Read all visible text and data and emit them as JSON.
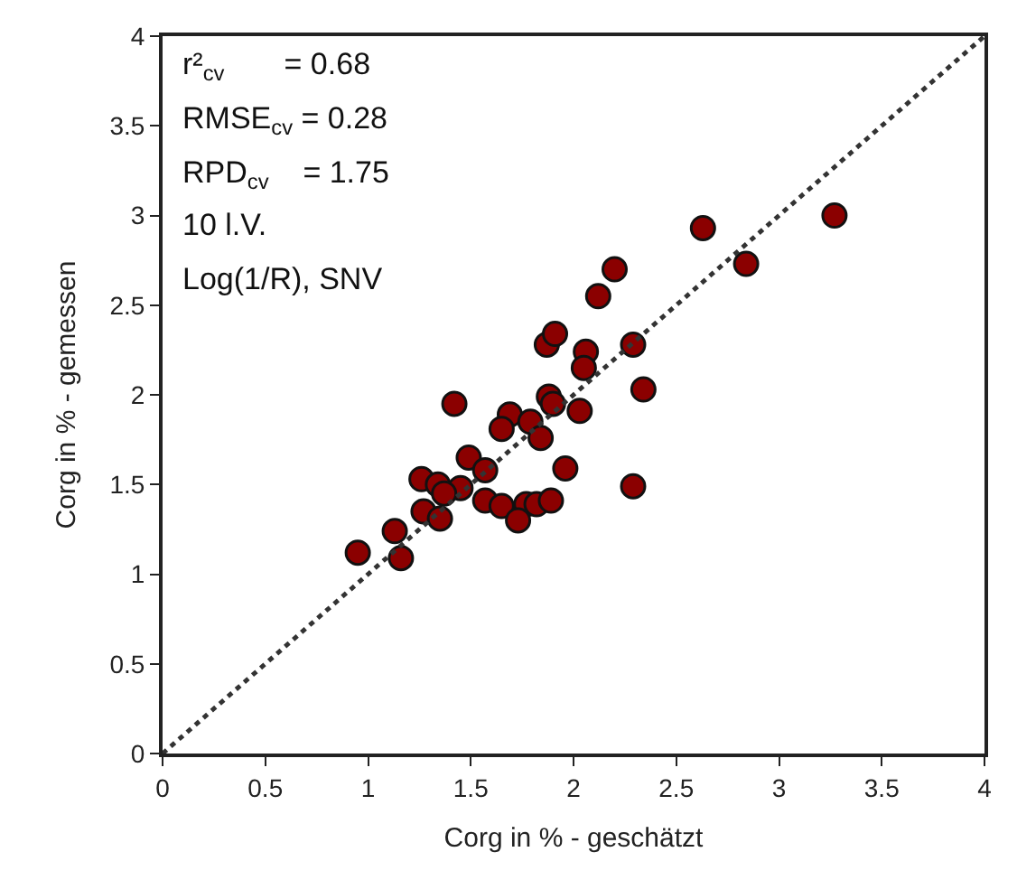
{
  "chart_data": {
    "type": "scatter",
    "xlabel": "Corg in % - geschätzt",
    "ylabel": "Corg in % - gemessen",
    "xlim": [
      0,
      4
    ],
    "ylim": [
      0,
      4
    ],
    "xticks": [
      0,
      0.5,
      1,
      1.5,
      2,
      2.5,
      3,
      3.5,
      4
    ],
    "yticks": [
      0,
      0.5,
      1,
      1.5,
      2,
      2.5,
      3,
      3.5,
      4
    ],
    "legend": false,
    "marker": "circle",
    "annotations": [
      "r²$_{cv}$       = 0.68",
      "RMSE$_{cv}$ = 0.28",
      "RPD$_{cv}$    = 1.75",
      "10 l.V.",
      "Log(1/R), SNV"
    ],
    "series": [
      {
        "color": "#8b0000",
        "x": [
          2.2,
          2.12,
          1.87,
          1.91,
          2.06,
          2.05,
          2.29,
          2.34,
          1.42,
          1.88,
          1.9,
          2.03,
          1.69,
          1.79,
          1.65,
          1.84,
          1.49,
          1.57,
          1.96,
          2.29,
          1.26,
          1.34,
          1.45,
          1.37,
          1.57,
          1.65,
          1.77,
          1.82,
          1.89,
          1.73,
          1.27,
          1.35,
          1.13,
          1.16,
          0.95,
          2.63,
          3.27,
          2.84
        ],
        "values": [
          2.7,
          2.55,
          2.28,
          2.34,
          2.24,
          2.15,
          2.28,
          2.03,
          1.95,
          1.99,
          1.95,
          1.91,
          1.89,
          1.85,
          1.81,
          1.76,
          1.65,
          1.58,
          1.59,
          1.49,
          1.53,
          1.5,
          1.48,
          1.45,
          1.41,
          1.38,
          1.39,
          1.39,
          1.41,
          1.3,
          1.35,
          1.31,
          1.24,
          1.09,
          1.12,
          2.93,
          3.0,
          2.73
        ]
      },
      {
        "type": "line",
        "color": "#333333",
        "line_style": "dotted",
        "marker": "none",
        "x": [
          0,
          4
        ],
        "values": [
          0,
          4
        ]
      }
    ]
  }
}
